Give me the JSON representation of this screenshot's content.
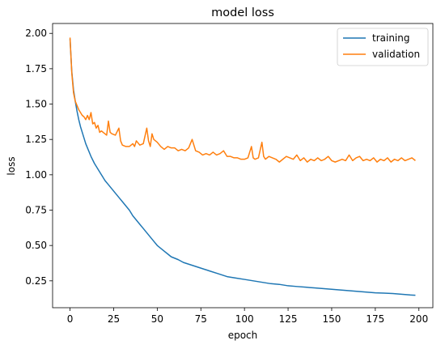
{
  "chart_data": {
    "type": "line",
    "title": "model loss",
    "xlabel": "epoch",
    "ylabel": "loss",
    "xlim": [
      -10,
      208
    ],
    "ylim": [
      0.06,
      2.07
    ],
    "xticks": [
      0,
      25,
      50,
      75,
      100,
      125,
      150,
      175,
      200
    ],
    "yticks": [
      0.25,
      0.5,
      0.75,
      1.0,
      1.25,
      1.5,
      1.75,
      2.0
    ],
    "ytick_labels": [
      "0.25",
      "0.50",
      "0.75",
      "1.00",
      "1.25",
      "1.50",
      "1.75",
      "2.00"
    ],
    "grid": false,
    "legend": {
      "placement": "top-right",
      "entries": [
        "training",
        "validation"
      ]
    },
    "series": [
      {
        "name": "training",
        "color": "#1f77b4",
        "points": [
          [
            0,
            1.96
          ],
          [
            1,
            1.73
          ],
          [
            2,
            1.6
          ],
          [
            3,
            1.52
          ],
          [
            4,
            1.45
          ],
          [
            5,
            1.39
          ],
          [
            6,
            1.34
          ],
          [
            7,
            1.3
          ],
          [
            8,
            1.26
          ],
          [
            9,
            1.22
          ],
          [
            10,
            1.19
          ],
          [
            12,
            1.13
          ],
          [
            14,
            1.08
          ],
          [
            16,
            1.04
          ],
          [
            18,
            1.0
          ],
          [
            20,
            0.96
          ],
          [
            22,
            0.93
          ],
          [
            24,
            0.9
          ],
          [
            26,
            0.87
          ],
          [
            28,
            0.84
          ],
          [
            30,
            0.81
          ],
          [
            32,
            0.78
          ],
          [
            34,
            0.75
          ],
          [
            36,
            0.71
          ],
          [
            38,
            0.68
          ],
          [
            40,
            0.65
          ],
          [
            42,
            0.62
          ],
          [
            44,
            0.59
          ],
          [
            46,
            0.56
          ],
          [
            48,
            0.53
          ],
          [
            50,
            0.5
          ],
          [
            52,
            0.48
          ],
          [
            54,
            0.46
          ],
          [
            56,
            0.44
          ],
          [
            58,
            0.42
          ],
          [
            60,
            0.41
          ],
          [
            62,
            0.4
          ],
          [
            65,
            0.38
          ],
          [
            70,
            0.36
          ],
          [
            75,
            0.34
          ],
          [
            80,
            0.32
          ],
          [
            85,
            0.3
          ],
          [
            90,
            0.28
          ],
          [
            95,
            0.27
          ],
          [
            100,
            0.26
          ],
          [
            105,
            0.25
          ],
          [
            110,
            0.24
          ],
          [
            115,
            0.23
          ],
          [
            120,
            0.225
          ],
          [
            125,
            0.215
          ],
          [
            130,
            0.21
          ],
          [
            135,
            0.205
          ],
          [
            140,
            0.2
          ],
          [
            145,
            0.195
          ],
          [
            150,
            0.19
          ],
          [
            155,
            0.185
          ],
          [
            160,
            0.18
          ],
          [
            165,
            0.175
          ],
          [
            170,
            0.17
          ],
          [
            175,
            0.165
          ],
          [
            180,
            0.163
          ],
          [
            185,
            0.16
          ],
          [
            190,
            0.155
          ],
          [
            195,
            0.15
          ],
          [
            198,
            0.148
          ]
        ]
      },
      {
        "name": "validation",
        "color": "#ff7f0e",
        "points": [
          [
            0,
            1.97
          ],
          [
            1,
            1.72
          ],
          [
            2,
            1.58
          ],
          [
            3,
            1.52
          ],
          [
            4,
            1.49
          ],
          [
            5,
            1.46
          ],
          [
            6,
            1.44
          ],
          [
            7,
            1.42
          ],
          [
            8,
            1.41
          ],
          [
            9,
            1.39
          ],
          [
            10,
            1.42
          ],
          [
            11,
            1.39
          ],
          [
            12,
            1.44
          ],
          [
            13,
            1.36
          ],
          [
            14,
            1.37
          ],
          [
            15,
            1.33
          ],
          [
            16,
            1.35
          ],
          [
            17,
            1.3
          ],
          [
            18,
            1.31
          ],
          [
            20,
            1.29
          ],
          [
            21,
            1.28
          ],
          [
            22,
            1.38
          ],
          [
            23,
            1.3
          ],
          [
            24,
            1.29
          ],
          [
            26,
            1.28
          ],
          [
            28,
            1.33
          ],
          [
            29,
            1.24
          ],
          [
            30,
            1.21
          ],
          [
            32,
            1.2
          ],
          [
            34,
            1.2
          ],
          [
            36,
            1.22
          ],
          [
            37,
            1.2
          ],
          [
            38,
            1.24
          ],
          [
            40,
            1.21
          ],
          [
            42,
            1.22
          ],
          [
            44,
            1.33
          ],
          [
            45,
            1.24
          ],
          [
            46,
            1.2
          ],
          [
            47,
            1.29
          ],
          [
            48,
            1.25
          ],
          [
            50,
            1.23
          ],
          [
            52,
            1.2
          ],
          [
            54,
            1.18
          ],
          [
            56,
            1.2
          ],
          [
            58,
            1.19
          ],
          [
            60,
            1.19
          ],
          [
            62,
            1.17
          ],
          [
            64,
            1.18
          ],
          [
            66,
            1.17
          ],
          [
            68,
            1.19
          ],
          [
            70,
            1.25
          ],
          [
            72,
            1.17
          ],
          [
            74,
            1.16
          ],
          [
            76,
            1.14
          ],
          [
            78,
            1.15
          ],
          [
            80,
            1.14
          ],
          [
            82,
            1.16
          ],
          [
            84,
            1.14
          ],
          [
            86,
            1.15
          ],
          [
            88,
            1.17
          ],
          [
            90,
            1.13
          ],
          [
            92,
            1.13
          ],
          [
            94,
            1.12
          ],
          [
            96,
            1.12
          ],
          [
            98,
            1.11
          ],
          [
            100,
            1.11
          ],
          [
            102,
            1.12
          ],
          [
            104,
            1.2
          ],
          [
            105,
            1.12
          ],
          [
            106,
            1.11
          ],
          [
            108,
            1.12
          ],
          [
            110,
            1.23
          ],
          [
            111,
            1.13
          ],
          [
            112,
            1.11
          ],
          [
            114,
            1.13
          ],
          [
            116,
            1.12
          ],
          [
            118,
            1.11
          ],
          [
            120,
            1.09
          ],
          [
            122,
            1.11
          ],
          [
            124,
            1.13
          ],
          [
            126,
            1.12
          ],
          [
            128,
            1.11
          ],
          [
            130,
            1.14
          ],
          [
            132,
            1.1
          ],
          [
            134,
            1.12
          ],
          [
            136,
            1.09
          ],
          [
            138,
            1.11
          ],
          [
            140,
            1.1
          ],
          [
            142,
            1.12
          ],
          [
            144,
            1.1
          ],
          [
            146,
            1.11
          ],
          [
            148,
            1.13
          ],
          [
            150,
            1.1
          ],
          [
            152,
            1.09
          ],
          [
            154,
            1.1
          ],
          [
            156,
            1.11
          ],
          [
            158,
            1.1
          ],
          [
            160,
            1.14
          ],
          [
            162,
            1.1
          ],
          [
            164,
            1.12
          ],
          [
            166,
            1.13
          ],
          [
            168,
            1.1
          ],
          [
            170,
            1.11
          ],
          [
            172,
            1.1
          ],
          [
            174,
            1.12
          ],
          [
            176,
            1.09
          ],
          [
            178,
            1.11
          ],
          [
            180,
            1.1
          ],
          [
            182,
            1.12
          ],
          [
            184,
            1.09
          ],
          [
            186,
            1.11
          ],
          [
            188,
            1.1
          ],
          [
            190,
            1.12
          ],
          [
            192,
            1.1
          ],
          [
            194,
            1.11
          ],
          [
            196,
            1.12
          ],
          [
            198,
            1.1
          ]
        ]
      }
    ]
  }
}
